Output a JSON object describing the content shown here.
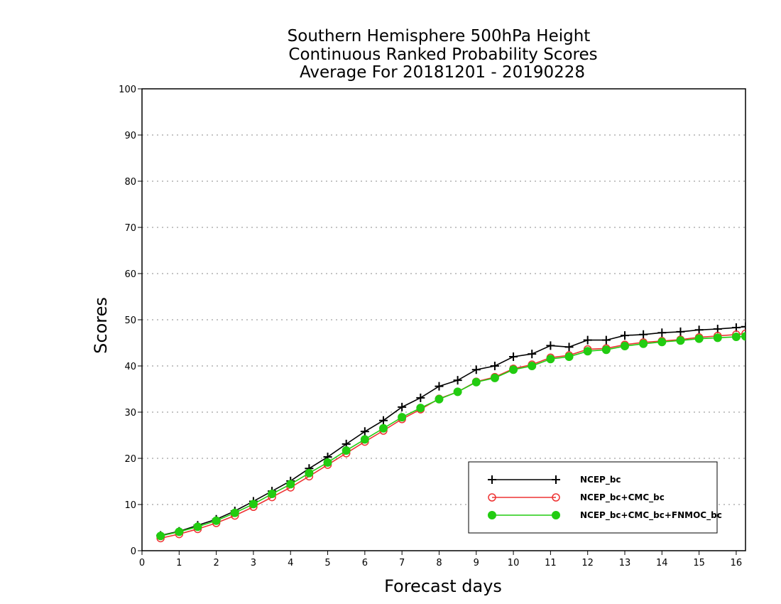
{
  "chart_data": {
    "type": "line",
    "title": [
      "Southern Hemisphere 500hPa Height",
      "Continuous Ranked Probability Scores",
      "Average For 20181201 - 20190228"
    ],
    "xlabel": "Forecast days",
    "ylabel": "Scores",
    "xlim": [
      0,
      16.25
    ],
    "ylim": [
      0,
      100
    ],
    "xticks": [
      0,
      1,
      2,
      3,
      4,
      5,
      6,
      7,
      8,
      9,
      10,
      11,
      12,
      13,
      14,
      15,
      16
    ],
    "yticks": [
      0,
      10,
      20,
      30,
      40,
      50,
      60,
      70,
      80,
      90,
      100
    ],
    "grid": "horizontal dotted",
    "legend_position": "bottom-right",
    "x": [
      0.5,
      1,
      1.5,
      2,
      2.5,
      3,
      3.5,
      4,
      4.5,
      5,
      5.5,
      6,
      6.5,
      7,
      7.5,
      8,
      8.5,
      9,
      9.5,
      10,
      10.5,
      11,
      11.5,
      12,
      12.5,
      13,
      13.5,
      14,
      14.5,
      15,
      15.5,
      16,
      16.25
    ],
    "series": [
      {
        "name": "NCEP_bc",
        "color": "#000000",
        "marker": "plus",
        "values": [
          3.3,
          4.2,
          5.5,
          6.8,
          8.6,
          10.7,
          12.9,
          15.1,
          17.8,
          20.3,
          23.1,
          25.8,
          28.2,
          31.1,
          33.1,
          35.6,
          36.9,
          39.2,
          40.0,
          42.0,
          42.6,
          44.4,
          44.1,
          45.6,
          45.6,
          46.6,
          46.8,
          47.2,
          47.4,
          47.8,
          48.0,
          48.3,
          48.5
        ]
      },
      {
        "name": "NCEP_bc+CMC_bc",
        "color": "#ee3333",
        "marker": "open-circle",
        "values": [
          2.7,
          3.6,
          4.7,
          6.0,
          7.6,
          9.5,
          11.6,
          13.7,
          16.1,
          18.6,
          21.1,
          23.6,
          26.0,
          28.5,
          30.6,
          32.9,
          34.4,
          36.6,
          37.6,
          39.4,
          40.3,
          41.8,
          42.3,
          43.6,
          43.8,
          44.6,
          45.1,
          45.4,
          45.7,
          46.2,
          46.5,
          46.8,
          47.0
        ]
      },
      {
        "name": "NCEP_bc+CMC_bc+FNMOC_bc",
        "color": "#22cc11",
        "marker": "filled-circle",
        "values": [
          3.2,
          4.1,
          5.2,
          6.5,
          8.2,
          10.1,
          12.3,
          14.4,
          16.8,
          19.1,
          21.7,
          24.1,
          26.5,
          28.9,
          30.9,
          32.8,
          34.4,
          36.5,
          37.4,
          39.2,
          40.0,
          41.5,
          42.0,
          43.2,
          43.5,
          44.3,
          44.8,
          45.2,
          45.5,
          45.9,
          46.1,
          46.3,
          46.4
        ]
      }
    ]
  }
}
